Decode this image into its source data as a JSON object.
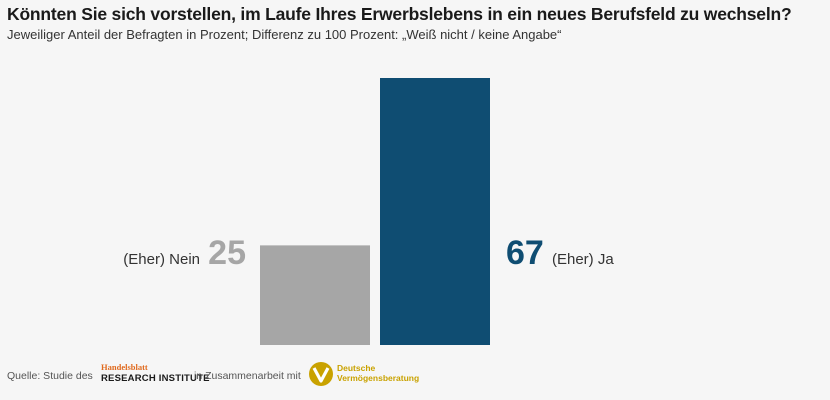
{
  "chart_data": {
    "type": "bar",
    "title": "Könnten Sie sich vorstellen, im Laufe Ihres Erwerbslebens in ein neues Berufsfeld zu wechseln?",
    "subtitle": "Jeweiliger Anteil der Befragten in Prozent; Differenz zu 100 Prozent: „Weiß nicht / keine Angabe“",
    "categories": [
      "(Eher) Nein",
      "(Eher) Ja"
    ],
    "values": [
      25,
      67
    ],
    "value_labels": [
      "25",
      "67"
    ],
    "colors": [
      "#a6a6a6",
      "#0f4d72"
    ],
    "ylim": [
      0,
      67
    ],
    "grid": false,
    "legend": "none"
  },
  "footer": {
    "source_prefix": "Quelle: Studie des",
    "logo1_small": "Handelsblatt",
    "logo1_big": "RESEARCH INSTITUTE",
    "middle": "in Zusammenarbeit mit",
    "logo2_line1": "Deutsche",
    "logo2_line2": "Vermögensberatung"
  },
  "colors": {
    "gray_bar": "#a6a6a6",
    "blue_bar": "#0f4d72",
    "gray_value": "#a6a6a6",
    "blue_value": "#0f4d72",
    "gold": "#c9a200"
  }
}
